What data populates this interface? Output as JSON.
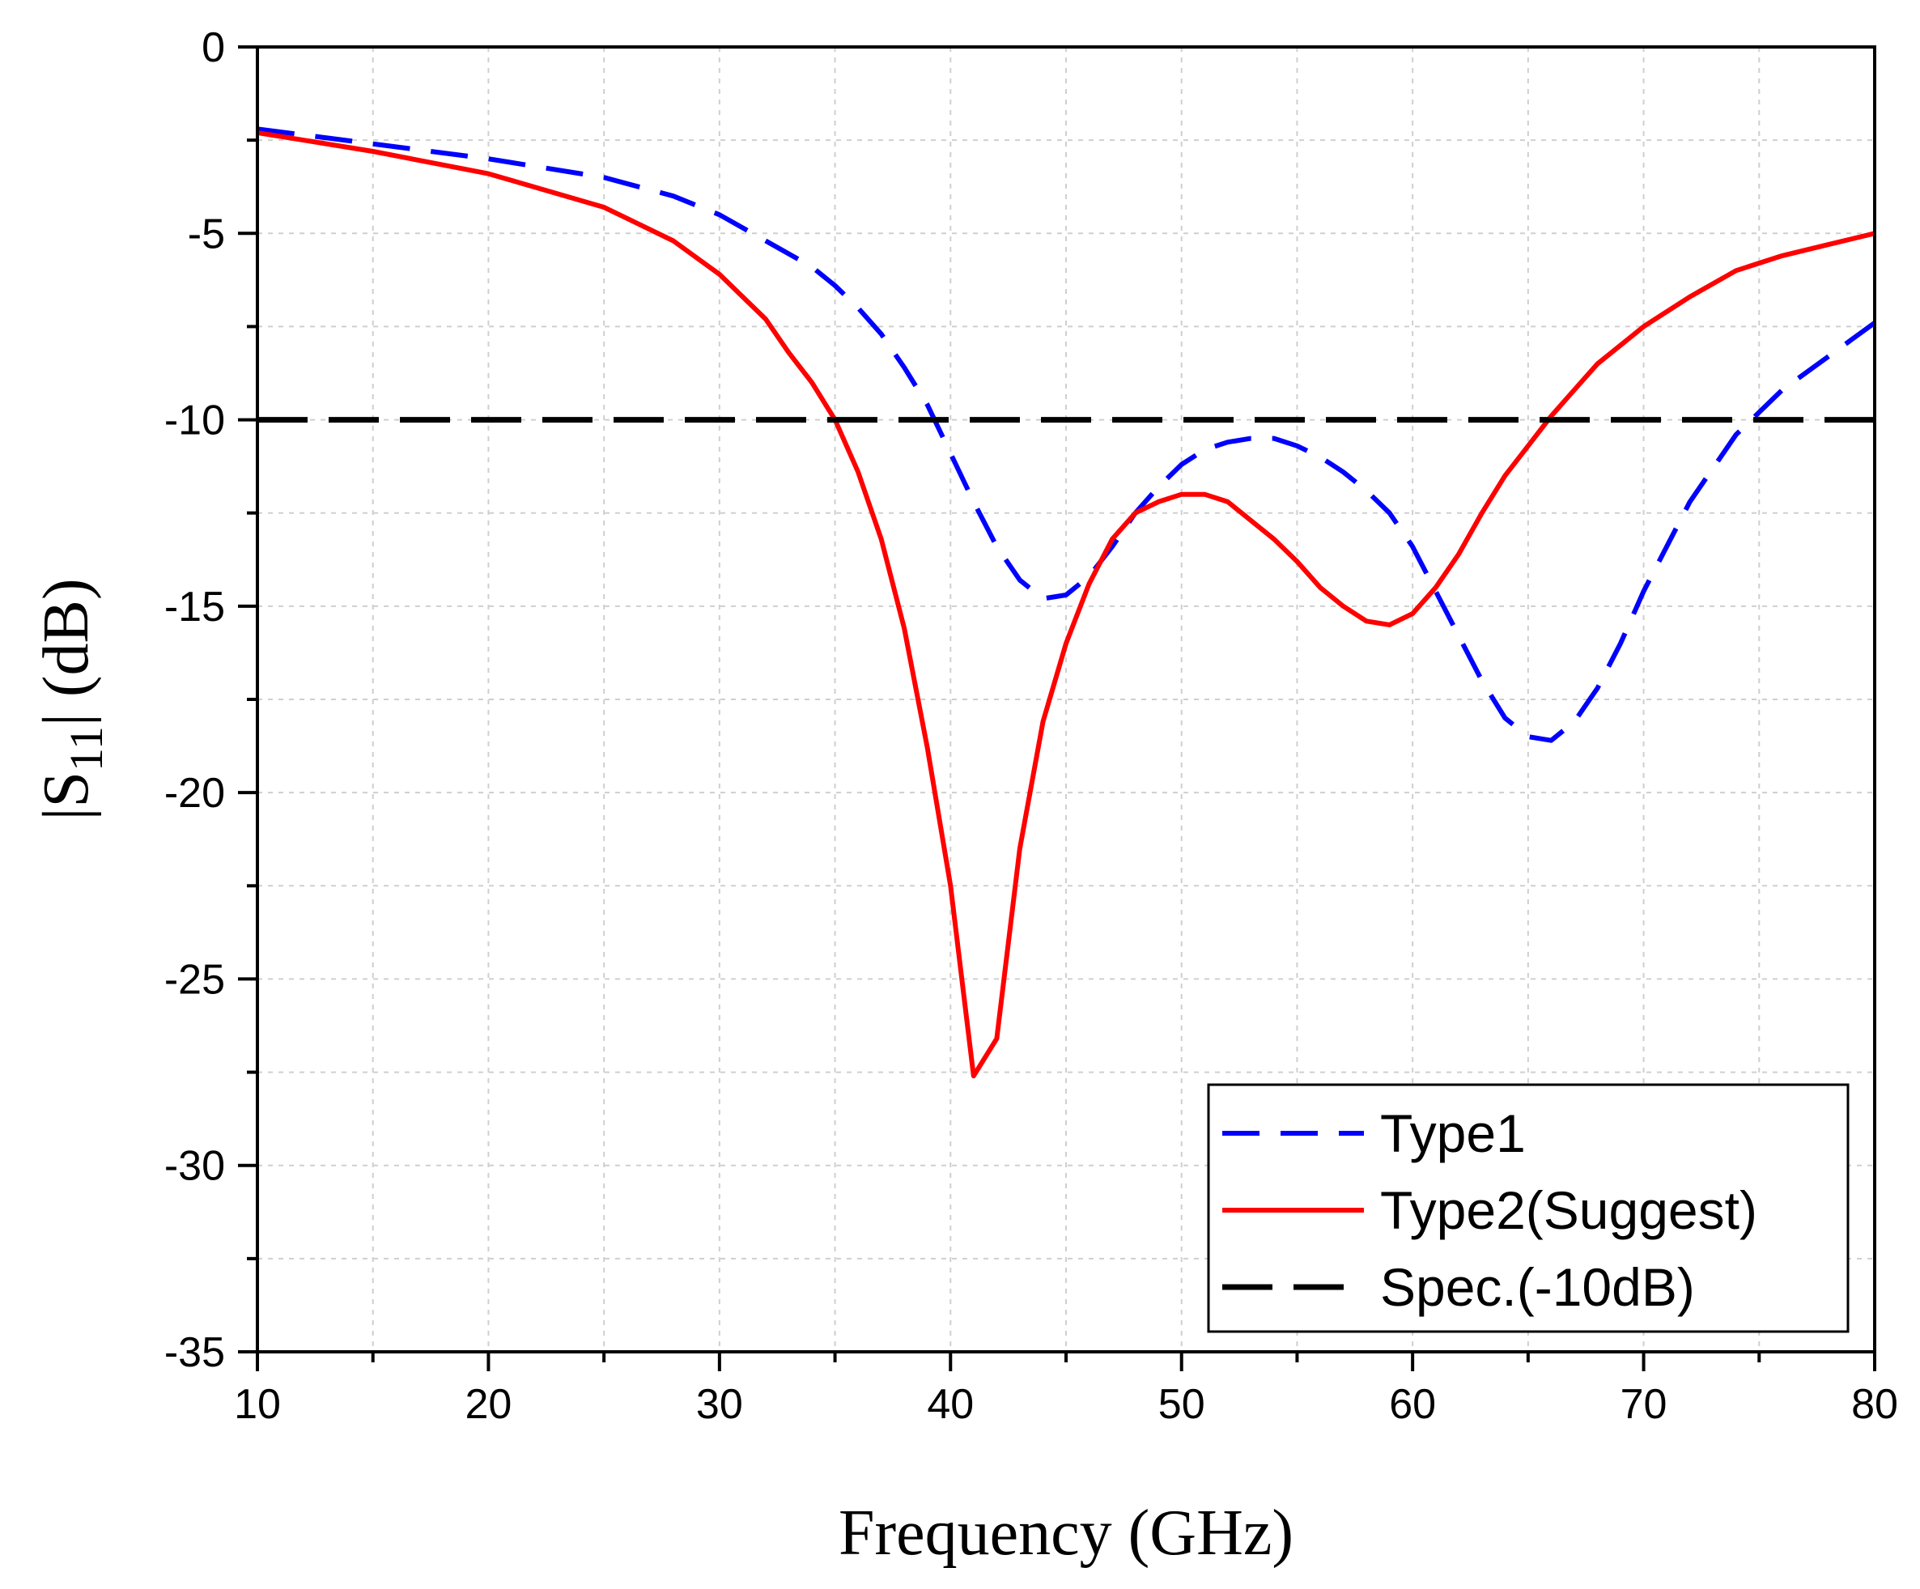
{
  "chart_data": {
    "type": "line",
    "title": "",
    "xlabel": "Frequency (GHz)",
    "ylabel_prefix": "|S",
    "ylabel_sub": "11",
    "ylabel_suffix": "| (dB)",
    "xlim": [
      10,
      80
    ],
    "ylim": [
      -35,
      0
    ],
    "xticks": [
      10,
      20,
      30,
      40,
      50,
      60,
      70,
      80
    ],
    "yticks": [
      0,
      -5,
      -10,
      -15,
      -20,
      -25,
      -30,
      -35
    ],
    "grid": true,
    "legend_position": "bottom-right",
    "series": [
      {
        "name": "Type1",
        "color": "#0000ff",
        "style": "dashed",
        "x": [
          10,
          15,
          20,
          25,
          28,
          30,
          32,
          34,
          35,
          36,
          37,
          38,
          39,
          40,
          41,
          42,
          43,
          44,
          45,
          46,
          47,
          48,
          49,
          50,
          51,
          52,
          53,
          54,
          55,
          56,
          57,
          58,
          59,
          60,
          61,
          62,
          63,
          64,
          65,
          66,
          67,
          68,
          69,
          70,
          72,
          74,
          76,
          78,
          80
        ],
        "y": [
          -2.2,
          -2.6,
          -3.0,
          -3.5,
          -4.0,
          -4.5,
          -5.2,
          -5.9,
          -6.4,
          -7.0,
          -7.7,
          -8.6,
          -9.6,
          -10.9,
          -12.2,
          -13.4,
          -14.3,
          -14.8,
          -14.7,
          -14.2,
          -13.4,
          -12.5,
          -11.8,
          -11.2,
          -10.8,
          -10.6,
          -10.5,
          -10.5,
          -10.7,
          -11.0,
          -11.4,
          -11.9,
          -12.5,
          -13.4,
          -14.6,
          -15.8,
          -17.0,
          -18.0,
          -18.5,
          -18.6,
          -18.1,
          -17.2,
          -16.0,
          -14.6,
          -12.2,
          -10.4,
          -9.2,
          -8.3,
          -7.4
        ]
      },
      {
        "name": "Type2(Suggest)",
        "color": "#ff0000",
        "style": "solid",
        "x": [
          10,
          15,
          20,
          25,
          28,
          30,
          32,
          33,
          34,
          35,
          36,
          37,
          38,
          39,
          40,
          41,
          42,
          43,
          44,
          45,
          46,
          47,
          48,
          49,
          50,
          51,
          52,
          53,
          54,
          55,
          56,
          57,
          58,
          59,
          60,
          61,
          62,
          63,
          64,
          65,
          66,
          67,
          68,
          70,
          72,
          74,
          76,
          78,
          80
        ],
        "y": [
          -2.3,
          -2.8,
          -3.4,
          -4.3,
          -5.2,
          -6.1,
          -7.3,
          -8.2,
          -9.0,
          -10.0,
          -11.4,
          -13.2,
          -15.6,
          -18.8,
          -22.5,
          -27.6,
          -26.6,
          -21.5,
          -18.1,
          -16.0,
          -14.4,
          -13.2,
          -12.5,
          -12.2,
          -12.0,
          -12.0,
          -12.2,
          -12.7,
          -13.2,
          -13.8,
          -14.5,
          -15.0,
          -15.4,
          -15.5,
          -15.2,
          -14.5,
          -13.6,
          -12.5,
          -11.5,
          -10.7,
          -9.9,
          -9.2,
          -8.5,
          -7.5,
          -6.7,
          -6.0,
          -5.6,
          -5.3,
          -5.0
        ]
      },
      {
        "name": "Spec.(-10dB)",
        "color": "#000000",
        "style": "long-dashed",
        "x": [
          10,
          80
        ],
        "y": [
          -10,
          -10
        ]
      }
    ]
  }
}
